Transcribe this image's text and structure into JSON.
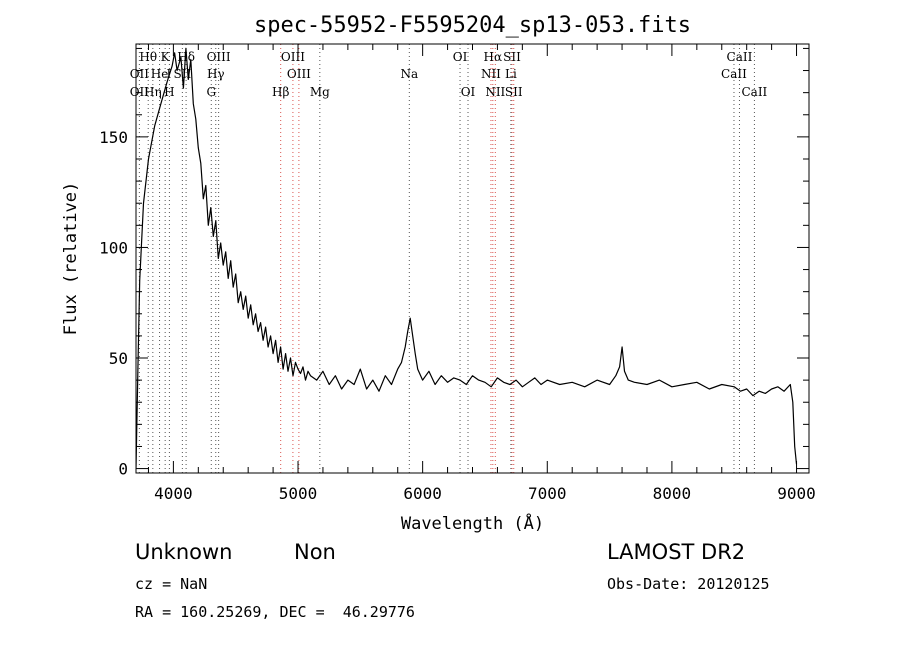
{
  "chart_data": {
    "type": "line",
    "title": "spec-55952-F5595204_sp13-053.fits",
    "xlabel": "Wavelength (Å)",
    "ylabel": "Flux (relative)",
    "xlim": [
      3700,
      9100
    ],
    "ylim": [
      -2,
      192
    ],
    "xticks": [
      4000,
      5000,
      6000,
      7000,
      8000,
      9000
    ],
    "yticks": [
      0,
      50,
      100,
      150
    ],
    "grid": false,
    "series": [
      {
        "color": "#000000",
        "x": [
          3700,
          3715,
          3730,
          3760,
          3800,
          3850,
          3900,
          3950,
          3990,
          4010,
          4030,
          4060,
          4080,
          4100,
          4120,
          4140,
          4160,
          4180,
          4200,
          4220,
          4240,
          4260,
          4280,
          4300,
          4320,
          4340,
          4360,
          4380,
          4400,
          4420,
          4440,
          4460,
          4480,
          4500,
          4520,
          4540,
          4560,
          4580,
          4600,
          4620,
          4640,
          4660,
          4680,
          4700,
          4720,
          4740,
          4760,
          4780,
          4800,
          4820,
          4840,
          4860,
          4880,
          4900,
          4920,
          4940,
          4960,
          4980,
          5000,
          5020,
          5040,
          5060,
          5080,
          5100,
          5150,
          5200,
          5250,
          5300,
          5350,
          5400,
          5450,
          5500,
          5550,
          5600,
          5650,
          5700,
          5750,
          5800,
          5830,
          5860,
          5880,
          5900,
          5920,
          5940,
          5960,
          6000,
          6050,
          6100,
          6150,
          6200,
          6250,
          6300,
          6350,
          6400,
          6450,
          6500,
          6550,
          6600,
          6650,
          6700,
          6750,
          6800,
          6850,
          6900,
          6950,
          7000,
          7100,
          7200,
          7300,
          7400,
          7500,
          7550,
          7580,
          7600,
          7620,
          7650,
          7700,
          7800,
          7900,
          8000,
          8100,
          8200,
          8300,
          8400,
          8500,
          8550,
          8600,
          8650,
          8700,
          8750,
          8800,
          8850,
          8900,
          8950,
          8970,
          8985,
          9000
        ],
        "y": [
          0,
          45,
          85,
          120,
          140,
          155,
          165,
          175,
          182,
          188,
          180,
          186,
          172,
          190,
          176,
          185,
          165,
          158,
          145,
          138,
          122,
          128,
          110,
          118,
          105,
          112,
          95,
          102,
          92,
          98,
          86,
          94,
          82,
          88,
          75,
          80,
          72,
          78,
          68,
          74,
          65,
          70,
          62,
          66,
          58,
          64,
          55,
          60,
          52,
          58,
          48,
          55,
          45,
          52,
          44,
          50,
          42,
          48,
          45,
          43,
          46,
          40,
          44,
          42,
          40,
          44,
          38,
          42,
          36,
          40,
          38,
          45,
          36,
          40,
          35,
          42,
          38,
          45,
          48,
          55,
          62,
          68,
          60,
          52,
          45,
          40,
          44,
          38,
          42,
          39,
          41,
          40,
          38,
          42,
          40,
          39,
          37,
          41,
          39,
          38,
          40,
          37,
          39,
          41,
          38,
          40,
          38,
          39,
          37,
          40,
          38,
          42,
          46,
          55,
          44,
          40,
          39,
          38,
          40,
          37,
          38,
          39,
          36,
          38,
          37,
          35,
          36,
          33,
          35,
          34,
          36,
          37,
          35,
          38,
          30,
          10,
          2
        ]
      }
    ],
    "line_labels": [
      {
        "text": "Hθ",
        "row": 1,
        "x_at": 3798
      },
      {
        "text": "K",
        "row": 1,
        "x_at": 3934
      },
      {
        "text": "Hδ",
        "row": 1,
        "x_at": 4102
      },
      {
        "text": "OIII",
        "row": 1,
        "x_at": 4363
      },
      {
        "text": "OIII",
        "row": 1,
        "x_at": 4959
      },
      {
        "text": "OI",
        "row": 1,
        "x_at": 6300
      },
      {
        "text": "Hα",
        "row": 1,
        "x_at": 6563
      },
      {
        "text": "SII",
        "row": 1,
        "x_at": 6717
      },
      {
        "text": "CaII",
        "row": 1,
        "x_at": 8542
      },
      {
        "text": "OII",
        "row": 2,
        "x_at": 3727
      },
      {
        "text": "He",
        "row": 2,
        "x_at": 3889
      },
      {
        "text": "I",
        "row": 2,
        "x_at": 3964
      },
      {
        "text": "SII",
        "row": 2,
        "x_at": 4072
      },
      {
        "text": "Hγ",
        "row": 2,
        "x_at": 4340
      },
      {
        "text": "OIII",
        "row": 2,
        "x_at": 5007
      },
      {
        "text": "Na",
        "row": 2,
        "x_at": 5893
      },
      {
        "text": "NII",
        "row": 2,
        "x_at": 6548
      },
      {
        "text": "Li",
        "row": 2,
        "x_at": 6708
      },
      {
        "text": "CaII",
        "row": 2,
        "x_at": 8498
      },
      {
        "text": "OII",
        "row": 3,
        "x_at": 3727
      },
      {
        "text": "Hη",
        "row": 3,
        "x_at": 3835
      },
      {
        "text": "H",
        "row": 3,
        "x_at": 3968
      },
      {
        "text": "G",
        "row": 3,
        "x_at": 4304
      },
      {
        "text": "Hβ",
        "row": 3,
        "x_at": 4861
      },
      {
        "text": "Mg",
        "row": 3,
        "x_at": 5175
      },
      {
        "text": "OI",
        "row": 3,
        "x_at": 6364
      },
      {
        "text": "NII",
        "row": 3,
        "x_at": 6583
      },
      {
        "text": "SII",
        "row": 3,
        "x_at": 6731
      },
      {
        "text": "CaII",
        "row": 3,
        "x_at": 8662
      }
    ],
    "line_marks": [
      3727,
      3798,
      3835,
      3889,
      3934,
      3968,
      4072,
      4102,
      4304,
      4340,
      4363,
      4861,
      4959,
      5007,
      5175,
      5893,
      6300,
      6364,
      6548,
      6563,
      6583,
      6708,
      6717,
      6731,
      8498,
      8542,
      8662
    ]
  },
  "info": {
    "class_label": "Unknown",
    "subclass_label": "Non",
    "cz_label": "cz = NaN",
    "coords_label": "RA = 160.25269, DEC =  46.29776",
    "survey_label": "LAMOST DR2",
    "obs_date_label": "Obs-Date: 20120125"
  },
  "colors": {
    "line_mark": "#d9534f",
    "spectrum": "#000000"
  }
}
